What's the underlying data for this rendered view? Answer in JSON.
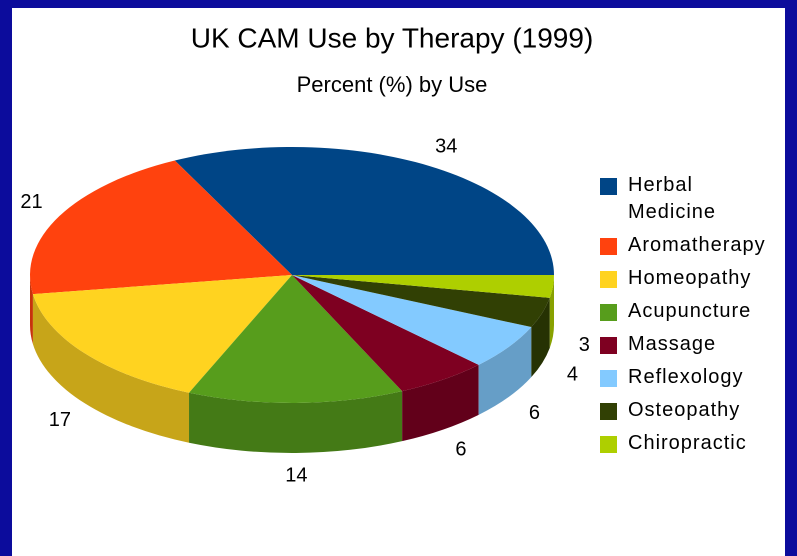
{
  "chart_data": {
    "type": "pie3d",
    "title": "UK CAM Use by Therapy (1999)",
    "subtitle": "Percent (%) by Use",
    "categories": [
      "Herbal Medicine",
      "Aromatherapy",
      "Homeopathy",
      "Acupuncture",
      "Massage",
      "Reflexology",
      "Osteopathy",
      "Chiropractic"
    ],
    "values": [
      34,
      21,
      17,
      14,
      6,
      6,
      4,
      3
    ],
    "colors": [
      "#004586",
      "#ff420e",
      "#ffd320",
      "#579d1c",
      "#7e0021",
      "#83caff",
      "#314004",
      "#aecf00"
    ],
    "legend": "right"
  }
}
